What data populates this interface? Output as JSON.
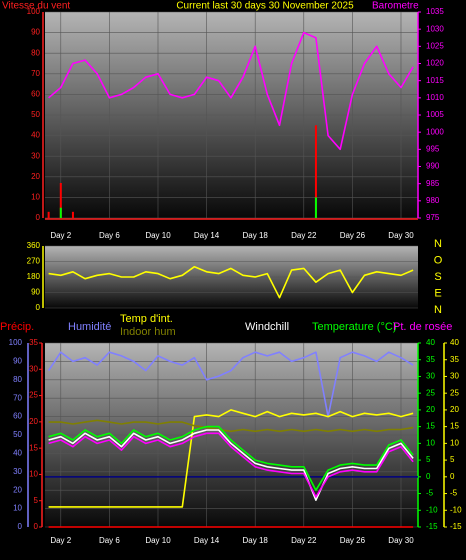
{
  "chart_data": [
    {
      "type": "combo",
      "title": "Current last 30 days 30 November 2025",
      "ylabel": "Vitesse du vent",
      "y2label": "Barometre",
      "x": [
        1,
        2,
        3,
        4,
        5,
        6,
        7,
        8,
        9,
        10,
        11,
        12,
        13,
        14,
        15,
        16,
        17,
        18,
        19,
        20,
        21,
        22,
        23,
        24,
        25,
        26,
        27,
        28,
        29,
        30,
        31
      ],
      "xlim": [
        0.7,
        31.4
      ],
      "xticks": [
        {
          "value": 2,
          "label": "Day 2"
        },
        {
          "value": 6,
          "label": "Day 6"
        },
        {
          "value": 10,
          "label": "Day 10"
        },
        {
          "value": 14,
          "label": "Day 14"
        },
        {
          "value": 18,
          "label": "Day 18"
        },
        {
          "value": 22,
          "label": "Day 22"
        },
        {
          "value": 26,
          "label": "Day 26"
        },
        {
          "value": 30,
          "label": "Day 30"
        }
      ],
      "ylim": [
        0,
        100
      ],
      "yticks": [
        0,
        10,
        20,
        30,
        40,
        50,
        60,
        70,
        80,
        90,
        100
      ],
      "ycolor": "#ff2020",
      "y2lim": [
        975,
        1035
      ],
      "y2ticks": [
        975,
        980,
        985,
        990,
        995,
        1000,
        1005,
        1010,
        1015,
        1020,
        1025,
        1030,
        1035
      ],
      "y2color": "#ff00ff",
      "series": [
        {
          "kind": "bar",
          "color": "#ff0000",
          "values": [
            3,
            17,
            3,
            0,
            0,
            0,
            0,
            0,
            0,
            0,
            0,
            0,
            0,
            0,
            0,
            0,
            0,
            0,
            0,
            0,
            0,
            0,
            45,
            0,
            0,
            0,
            0,
            0,
            0,
            0,
            0
          ]
        },
        {
          "kind": "bar",
          "color": "#00ff00",
          "values": [
            0,
            5,
            0,
            0,
            0,
            0,
            0,
            0,
            0,
            0,
            0,
            0,
            0,
            0,
            0,
            0,
            0,
            0,
            0,
            0,
            0,
            0,
            10,
            0,
            0,
            0,
            0,
            0,
            0,
            0,
            0
          ]
        },
        {
          "kind": "line",
          "axis": "y2",
          "color": "#ff00ff",
          "values": [
            1010,
            1013,
            1020,
            1021,
            1017,
            1010,
            1011,
            1013,
            1016,
            1017,
            1011,
            1010,
            1011,
            1016,
            1015,
            1010,
            1016,
            1025,
            1011,
            1002,
            1020,
            1029,
            1027.5,
            999,
            995,
            1011,
            1020,
            1025,
            1017,
            1013,
            1019
          ]
        }
      ]
    },
    {
      "type": "line",
      "x": [
        1,
        2,
        3,
        4,
        5,
        6,
        7,
        8,
        9,
        10,
        11,
        12,
        13,
        14,
        15,
        16,
        17,
        18,
        19,
        20,
        21,
        22,
        23,
        24,
        25,
        26,
        27,
        28,
        29,
        30,
        31
      ],
      "xlim": [
        0.7,
        31.4
      ],
      "ylim": [
        0,
        360
      ],
      "yticks": [
        0,
        90,
        180,
        270,
        360
      ],
      "ycolor": "#ffff00",
      "y2ticks": [
        {
          "value": 360,
          "label": "N"
        },
        {
          "value": 270,
          "label": "O"
        },
        {
          "value": 180,
          "label": "S"
        },
        {
          "value": 90,
          "label": "E"
        },
        {
          "value": 0,
          "label": "N"
        }
      ],
      "series": [
        {
          "kind": "line",
          "color": "#ffff00",
          "values": [
            200,
            190,
            210,
            170,
            190,
            200,
            180,
            180,
            210,
            200,
            170,
            190,
            240,
            210,
            200,
            230,
            190,
            180,
            200,
            60,
            220,
            230,
            150,
            200,
            220,
            90,
            190,
            210,
            200,
            190,
            220
          ]
        }
      ]
    },
    {
      "type": "line",
      "x": [
        1,
        2,
        3,
        4,
        5,
        6,
        7,
        8,
        9,
        10,
        11,
        12,
        13,
        14,
        15,
        16,
        17,
        18,
        19,
        20,
        21,
        22,
        23,
        24,
        25,
        26,
        27,
        28,
        29,
        30,
        31
      ],
      "xlim": [
        0.7,
        31.4
      ],
      "xticks": [
        {
          "value": 2,
          "label": "Day 2"
        },
        {
          "value": 6,
          "label": "Day 6"
        },
        {
          "value": 10,
          "label": "Day 10"
        },
        {
          "value": 14,
          "label": "Day 14"
        },
        {
          "value": 18,
          "label": "Day 18"
        },
        {
          "value": 22,
          "label": "Day 22"
        },
        {
          "value": 26,
          "label": "Day 26"
        },
        {
          "value": 30,
          "label": "Day 30"
        }
      ],
      "ylim": [
        0,
        100
      ],
      "yticks": [
        0,
        10,
        20,
        30,
        40,
        50,
        60,
        70,
        80,
        90,
        100
      ],
      "ycolor": "#8080ff",
      "y3lim": [
        0,
        35
      ],
      "y3ticks": [
        0,
        5,
        10,
        15,
        20,
        25,
        30,
        35
      ],
      "y3color": "#ff2020",
      "y2lim": [
        -15,
        40
      ],
      "y2ticks": [
        -15,
        -10,
        -5,
        0,
        5,
        10,
        15,
        20,
        25,
        30,
        35,
        40
      ],
      "y2color": "#00ff00",
      "y2color_b": "#ffff00",
      "series": [
        {
          "name": "Précip.",
          "kind": "line",
          "axis": "y3",
          "color": "#ff0000",
          "values": [
            0,
            0,
            0,
            0,
            0,
            0,
            0,
            0,
            0,
            0,
            0,
            0,
            0,
            0,
            0,
            0,
            0,
            0,
            0,
            0,
            0,
            0,
            0,
            0,
            0,
            0,
            0,
            0,
            0,
            0,
            0
          ]
        },
        {
          "name": "Humidité",
          "kind": "line",
          "color": "#8080ff",
          "values": [
            85,
            95,
            90,
            92,
            88,
            95,
            93,
            90,
            85,
            93,
            90,
            88,
            92,
            80,
            82,
            85,
            92,
            95,
            93,
            95,
            90,
            92,
            95,
            60,
            92,
            95,
            93,
            90,
            95,
            92,
            88
          ]
        },
        {
          "name": "Temp d'int.",
          "kind": "line",
          "axis": "y2",
          "color": "#ffff00",
          "values": [
            -9,
            -9,
            -9,
            -9,
            -9,
            -9,
            -9,
            -9,
            -9,
            -9,
            -9,
            -9,
            18,
            18.5,
            18,
            20,
            19,
            18,
            19.5,
            18,
            19,
            18.5,
            19,
            18,
            19.5,
            18,
            19,
            18.5,
            19,
            18,
            19
          ]
        },
        {
          "name": "Indoor hum",
          "kind": "line",
          "color": "#808000",
          "values": [
            57,
            57,
            56,
            57,
            58,
            57,
            56,
            57,
            57,
            56,
            57,
            57,
            55,
            54,
            53,
            52,
            53,
            52,
            53,
            52,
            53,
            52,
            53,
            52,
            53,
            52,
            53,
            52,
            53,
            53,
            54
          ]
        },
        {
          "name": "Windchill",
          "kind": "line",
          "axis": "y2",
          "color": "#ffffff",
          "values": [
            11,
            12,
            10,
            13,
            11,
            12,
            9,
            13,
            11,
            12,
            10,
            11,
            13,
            14,
            14,
            10,
            7,
            4,
            3,
            2.5,
            2,
            2,
            -7,
            1,
            2.5,
            3,
            2.5,
            2.5,
            8.5,
            10,
            5.5
          ]
        },
        {
          "name": "Temperature (°C)",
          "kind": "line",
          "axis": "y2",
          "color": "#00ff00",
          "values": [
            12,
            13,
            11,
            14,
            12,
            13,
            10,
            14,
            12,
            13,
            11,
            12,
            14,
            15,
            15,
            11,
            8,
            5,
            4,
            3.5,
            3,
            3,
            -4,
            2,
            3.5,
            4,
            3.5,
            3.5,
            9.5,
            11,
            6.5
          ]
        },
        {
          "name": "Pt. de rosée",
          "kind": "line",
          "axis": "y2",
          "color": "#ff00ff",
          "values": [
            10,
            11,
            9,
            12,
            10,
            11,
            8,
            12,
            10,
            11,
            9,
            10,
            12,
            13,
            13,
            9,
            6,
            3,
            2,
            1.5,
            1,
            1,
            -6,
            0,
            1.5,
            2,
            1.5,
            1.5,
            7.5,
            9,
            4.5
          ]
        }
      ]
    }
  ]
}
